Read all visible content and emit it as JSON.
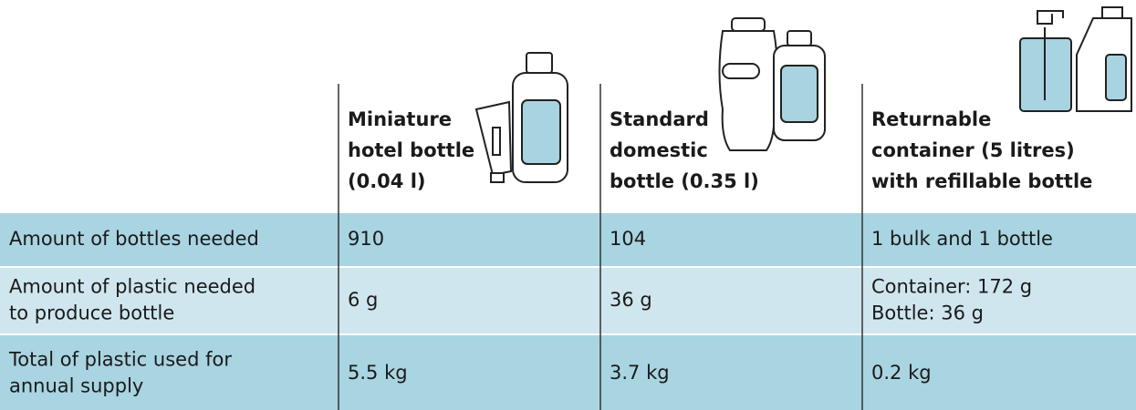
{
  "table": {
    "columns": [
      [
        "Miniature",
        "hotel bottle",
        "(0.04 l)"
      ],
      [
        "Standard",
        "domestic",
        "bottle (0.35 l)"
      ],
      [
        "Returnable",
        "container (5 litres)",
        "with refillable bottle"
      ]
    ],
    "rows": [
      [
        [
          "Amount of bottles needed"
        ],
        [
          "910"
        ],
        [
          "104"
        ],
        [
          "1 bulk and 1 bottle"
        ]
      ],
      [
        [
          "Amount of plastic needed",
          "to produce bottle"
        ],
        [
          "6 g"
        ],
        [
          "36 g"
        ],
        [
          "Container: 172 g",
          "Bottle: 36 g"
        ]
      ],
      [
        [
          "Total of plastic used for",
          "annual supply"
        ],
        [
          "5.5 kg"
        ],
        [
          "3.7 kg"
        ],
        [
          "0.2 kg"
        ]
      ]
    ]
  }
}
